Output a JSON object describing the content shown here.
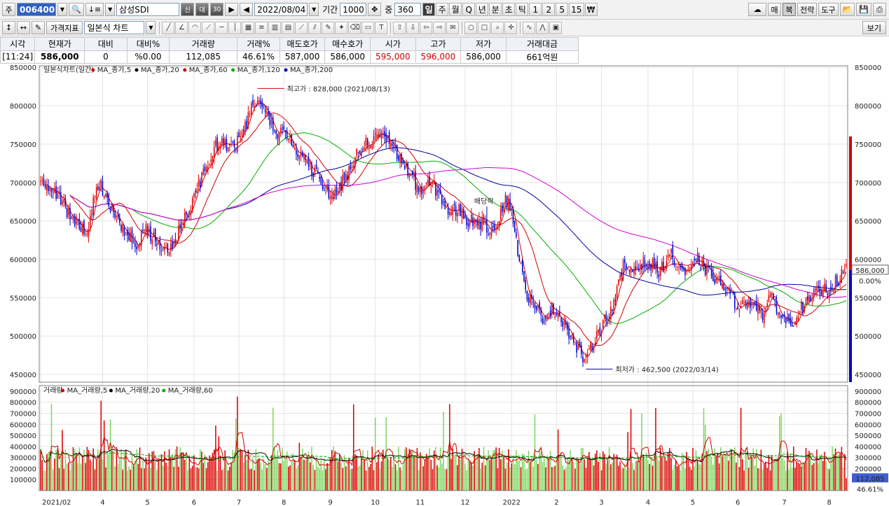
{
  "toolbar1": {
    "market_tab": "주",
    "code": "006400",
    "name": "삼성SDI",
    "name_badges": [
      "신",
      "대",
      "30"
    ],
    "date": "2022/08/04",
    "period_label": "기간",
    "period_value": "1000",
    "overlap_label": "중",
    "overlap_value": "360",
    "intervals": [
      "일",
      "주",
      "월",
      "Q",
      "년",
      "분",
      "초",
      "틱",
      "1",
      "2",
      "5",
      "15",
      "₩"
    ],
    "active_interval": "일",
    "right_buttons": [
      "매",
      "복",
      "전략",
      "도구"
    ]
  },
  "toolbar2": {
    "indicator_button": "가격지표",
    "chart_type": "일본식 차트",
    "view_button": "보기"
  },
  "quote": {
    "headers": [
      "시각",
      "현재가",
      "대비",
      "대비%",
      "거래량",
      "거래%",
      "매도호가",
      "매수호가",
      "시가",
      "고가",
      "저가",
      "거래대금"
    ],
    "values": [
      "[11:24]",
      "586,000",
      "0",
      "%0.00",
      "112,085",
      "46.61%",
      "587,000",
      "586,000",
      "595,000",
      "596,000",
      "586,000",
      "661억원"
    ]
  },
  "chart_data": {
    "type": "candlestick",
    "legend_price": "일본식차트(일간)",
    "ma_price": [
      {
        "name": "MA_종가,5",
        "color": "#d40000"
      },
      {
        "name": "MA_종가,20",
        "color": "#000000"
      },
      {
        "name": "MA_종가,60",
        "color": "#d40000"
      },
      {
        "name": "MA_종가,120",
        "color": "#00b000"
      },
      {
        "name": "MA_종가,200",
        "color": "#0000a0"
      }
    ],
    "legend_volume": "거래량",
    "ma_volume": [
      {
        "name": "MA_거래량,5",
        "color": "#d40000"
      },
      {
        "name": "MA_거래량,20",
        "color": "#000000"
      },
      {
        "name": "MA_거래량,60",
        "color": "#00b000"
      }
    ],
    "ylim_price": [
      440000,
      852000
    ],
    "ylim_volume": [
      0,
      950000
    ],
    "price_ticks": [
      "450000",
      "500000",
      "550000",
      "600000",
      "650000",
      "700000",
      "750000",
      "800000",
      "850000"
    ],
    "volume_ticks": [
      "100000",
      "200000",
      "300000",
      "400000",
      "500000",
      "600000",
      "700000",
      "800000",
      "900000"
    ],
    "x_ticks": [
      "2021/02",
      "4",
      "5",
      "6",
      "7",
      "8",
      "9",
      "10",
      "11",
      "12",
      "2022",
      "2",
      "3",
      "4",
      "5",
      "6",
      "7",
      "8"
    ],
    "anchors": [
      [
        0,
        695000
      ],
      [
        6,
        690000
      ],
      [
        12,
        680000
      ],
      [
        18,
        660000
      ],
      [
        24,
        645000
      ],
      [
        30,
        630000
      ],
      [
        34,
        675000
      ],
      [
        38,
        700000
      ],
      [
        44,
        675000
      ],
      [
        50,
        650000
      ],
      [
        56,
        630000
      ],
      [
        62,
        620000
      ],
      [
        68,
        640000
      ],
      [
        74,
        625000
      ],
      [
        80,
        612000
      ],
      [
        86,
        620000
      ],
      [
        92,
        650000
      ],
      [
        100,
        685000
      ],
      [
        106,
        715000
      ],
      [
        112,
        748000
      ],
      [
        118,
        750000
      ],
      [
        124,
        748000
      ],
      [
        130,
        760000
      ],
      [
        136,
        795000
      ],
      [
        140,
        812000
      ],
      [
        146,
        790000
      ],
      [
        152,
        762000
      ],
      [
        158,
        765000
      ],
      [
        164,
        745000
      ],
      [
        170,
        730000
      ],
      [
        176,
        715000
      ],
      [
        182,
        700000
      ],
      [
        188,
        680000
      ],
      [
        192,
        690000
      ],
      [
        198,
        712000
      ],
      [
        204,
        740000
      ],
      [
        210,
        752000
      ],
      [
        216,
        755000
      ],
      [
        222,
        760000
      ],
      [
        228,
        745000
      ],
      [
        234,
        725000
      ],
      [
        240,
        705000
      ],
      [
        246,
        688000
      ],
      [
        252,
        700000
      ],
      [
        258,
        682000
      ],
      [
        264,
        660000
      ],
      [
        270,
        665000
      ],
      [
        276,
        650000
      ],
      [
        282,
        652000
      ],
      [
        288,
        640000
      ],
      [
        294,
        645000
      ],
      [
        300,
        680000
      ],
      [
        304,
        665000
      ],
      [
        308,
        612000
      ],
      [
        312,
        565000
      ],
      [
        318,
        538000
      ],
      [
        324,
        525000
      ],
      [
        330,
        535000
      ],
      [
        336,
        525000
      ],
      [
        342,
        500000
      ],
      [
        348,
        478000
      ],
      [
        352,
        468000
      ],
      [
        358,
        500000
      ],
      [
        364,
        520000
      ],
      [
        370,
        542000
      ],
      [
        376,
        590000
      ],
      [
        382,
        586000
      ],
      [
        388,
        595000
      ],
      [
        394,
        592000
      ],
      [
        400,
        585000
      ],
      [
        406,
        608000
      ],
      [
        412,
        590000
      ],
      [
        418,
        580000
      ],
      [
        424,
        600000
      ],
      [
        430,
        585000
      ],
      [
        436,
        575000
      ],
      [
        442,
        562000
      ],
      [
        448,
        545000
      ],
      [
        454,
        538000
      ],
      [
        460,
        548000
      ],
      [
        466,
        528000
      ],
      [
        472,
        552000
      ],
      [
        478,
        525000
      ],
      [
        484,
        516000
      ],
      [
        490,
        535000
      ],
      [
        496,
        545000
      ],
      [
        502,
        558000
      ],
      [
        508,
        562000
      ],
      [
        514,
        572000
      ],
      [
        520,
        586000
      ]
    ],
    "n_candles": 521,
    "annotations": [
      {
        "text": "최고가 : 828,000 (2021/08/13)",
        "index": 140,
        "value": 828000,
        "color": "#d40000"
      },
      {
        "text": "최저가 : 462,500 (2022/03/14)",
        "index": 352,
        "value": 462500,
        "color": "#0000a0"
      },
      {
        "text": "배당락",
        "index": 288,
        "value": 656000,
        "color": "#000000"
      }
    ],
    "last_price_label": "586,000",
    "last_change_label": "0.00%",
    "last_volume_label": "112,085",
    "last_volume_pct": "46.61%"
  },
  "colors": {
    "up": "#e00000",
    "down": "#0000d0",
    "vol_up": "#e00000",
    "vol_down": "#7fd860",
    "ma200": "#d000d0"
  }
}
